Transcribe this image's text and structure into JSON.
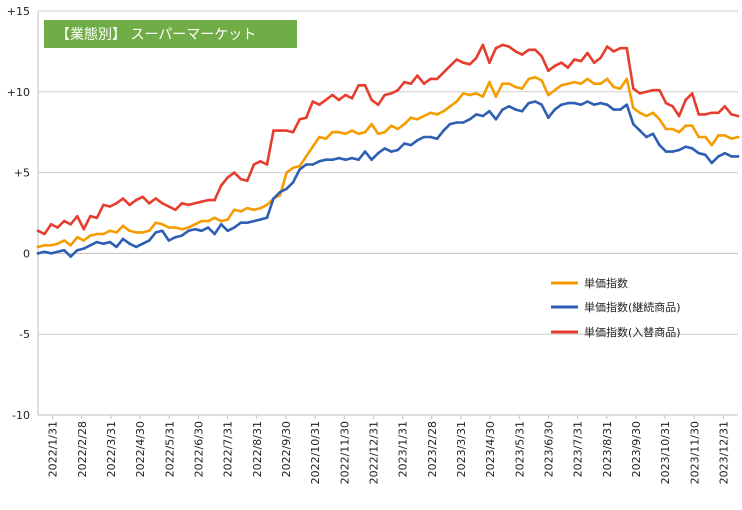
{
  "chart_data": {
    "type": "line",
    "title": "【業態別】 スーパーマーケット",
    "xlabel": "",
    "ylabel": "",
    "ylim": [
      -10,
      15
    ],
    "y_ticks": [
      "+15",
      "+10",
      "+5",
      "0",
      "-5",
      "-10"
    ],
    "x_tick_labels": [
      "2022/1/31",
      "2022/2/28",
      "2022/3/31",
      "2022/4/30",
      "2022/5/31",
      "2022/6/30",
      "2022/7/31",
      "2022/8/31",
      "2022/9/30",
      "2022/10/31",
      "2022/11/30",
      "2022/12/31",
      "2023/1/31",
      "2023/2/28",
      "2023/3/31",
      "2023/4/30",
      "2023/5/31",
      "2023/6/30",
      "2023/7/31",
      "2023/8/31",
      "2023/9/30",
      "2023/10/31",
      "2023/11/30",
      "2023/12/31"
    ],
    "grid": true,
    "legend_position": "right",
    "title_box_color": "#70ad47",
    "series": [
      {
        "name": "単価指数",
        "color": "#f59c00",
        "values": [
          0.4,
          0.5,
          0.5,
          0.6,
          0.8,
          0.5,
          1.0,
          0.8,
          1.1,
          1.2,
          1.2,
          1.4,
          1.3,
          1.7,
          1.4,
          1.3,
          1.3,
          1.4,
          1.9,
          1.8,
          1.6,
          1.6,
          1.5,
          1.6,
          1.8,
          2.0,
          2.0,
          2.2,
          2.0,
          2.1,
          2.7,
          2.6,
          2.8,
          2.7,
          2.8,
          3.0,
          3.4,
          3.6,
          5.0,
          5.3,
          5.4,
          6.0,
          6.6,
          7.2,
          7.1,
          7.5,
          7.5,
          7.4,
          7.6,
          7.4,
          7.5,
          8.0,
          7.4,
          7.5,
          7.9,
          7.7,
          8.0,
          8.4,
          8.3,
          8.5,
          8.7,
          8.6,
          8.8,
          9.1,
          9.4,
          9.9,
          9.8,
          9.9,
          9.7,
          10.6,
          9.7,
          10.5,
          10.5,
          10.3,
          10.2,
          10.8,
          10.9,
          10.7,
          9.8,
          10.1,
          10.4,
          10.5,
          10.6,
          10.5,
          10.8,
          10.5,
          10.5,
          10.8,
          10.3,
          10.2,
          10.8,
          9.0,
          8.7,
          8.5,
          8.7,
          8.3,
          7.7,
          7.7,
          7.5,
          7.9,
          7.9,
          7.2,
          7.2,
          6.7,
          7.3,
          7.3,
          7.1,
          7.2
        ]
      },
      {
        "name": "単価指数(継続商品)",
        "color": "#2e5fb3",
        "values": [
          0.0,
          0.1,
          0.0,
          0.1,
          0.2,
          -0.2,
          0.2,
          0.3,
          0.5,
          0.7,
          0.6,
          0.7,
          0.4,
          0.9,
          0.6,
          0.4,
          0.6,
          0.8,
          1.3,
          1.4,
          0.8,
          1.0,
          1.1,
          1.4,
          1.5,
          1.4,
          1.6,
          1.2,
          1.8,
          1.4,
          1.6,
          1.9,
          1.9,
          2.0,
          2.1,
          2.2,
          3.4,
          3.8,
          4.0,
          4.4,
          5.2,
          5.5,
          5.5,
          5.7,
          5.8,
          5.8,
          5.9,
          5.8,
          5.9,
          5.8,
          6.3,
          5.8,
          6.2,
          6.5,
          6.3,
          6.4,
          6.8,
          6.7,
          7.0,
          7.2,
          7.2,
          7.1,
          7.6,
          8.0,
          8.1,
          8.1,
          8.3,
          8.6,
          8.5,
          8.8,
          8.3,
          8.9,
          9.1,
          8.9,
          8.8,
          9.3,
          9.4,
          9.2,
          8.4,
          8.9,
          9.2,
          9.3,
          9.3,
          9.2,
          9.4,
          9.2,
          9.3,
          9.2,
          8.9,
          8.9,
          9.2,
          8.0,
          7.6,
          7.2,
          7.4,
          6.7,
          6.3,
          6.3,
          6.4,
          6.6,
          6.5,
          6.2,
          6.1,
          5.6,
          6.0,
          6.2,
          6.0,
          6.0
        ]
      },
      {
        "name": "単価指数(入替商品)",
        "color": "#e53e2e",
        "values": [
          1.4,
          1.2,
          1.8,
          1.6,
          2.0,
          1.8,
          2.3,
          1.5,
          2.3,
          2.2,
          3.0,
          2.9,
          3.1,
          3.4,
          3.0,
          3.3,
          3.5,
          3.1,
          3.4,
          3.1,
          2.9,
          2.7,
          3.1,
          3.0,
          3.1,
          3.2,
          3.3,
          3.3,
          4.2,
          4.7,
          5.0,
          4.6,
          4.5,
          5.5,
          5.7,
          5.5,
          7.6,
          7.6,
          7.6,
          7.5,
          8.3,
          8.4,
          9.4,
          9.2,
          9.5,
          9.8,
          9.5,
          9.8,
          9.6,
          10.4,
          10.4,
          9.5,
          9.2,
          9.8,
          9.9,
          10.1,
          10.6,
          10.5,
          11.0,
          10.5,
          10.8,
          10.8,
          11.2,
          11.6,
          12.0,
          11.8,
          11.7,
          12.1,
          12.9,
          11.8,
          12.7,
          12.9,
          12.8,
          12.5,
          12.3,
          12.6,
          12.6,
          12.2,
          11.3,
          11.6,
          11.8,
          11.5,
          12.0,
          11.9,
          12.4,
          11.8,
          12.1,
          12.8,
          12.5,
          12.7,
          12.7,
          10.2,
          9.9,
          10.0,
          10.1,
          10.1,
          9.3,
          9.1,
          8.5,
          9.5,
          9.9,
          8.6,
          8.6,
          8.7,
          8.7,
          9.1,
          8.6,
          8.5
        ]
      }
    ]
  }
}
